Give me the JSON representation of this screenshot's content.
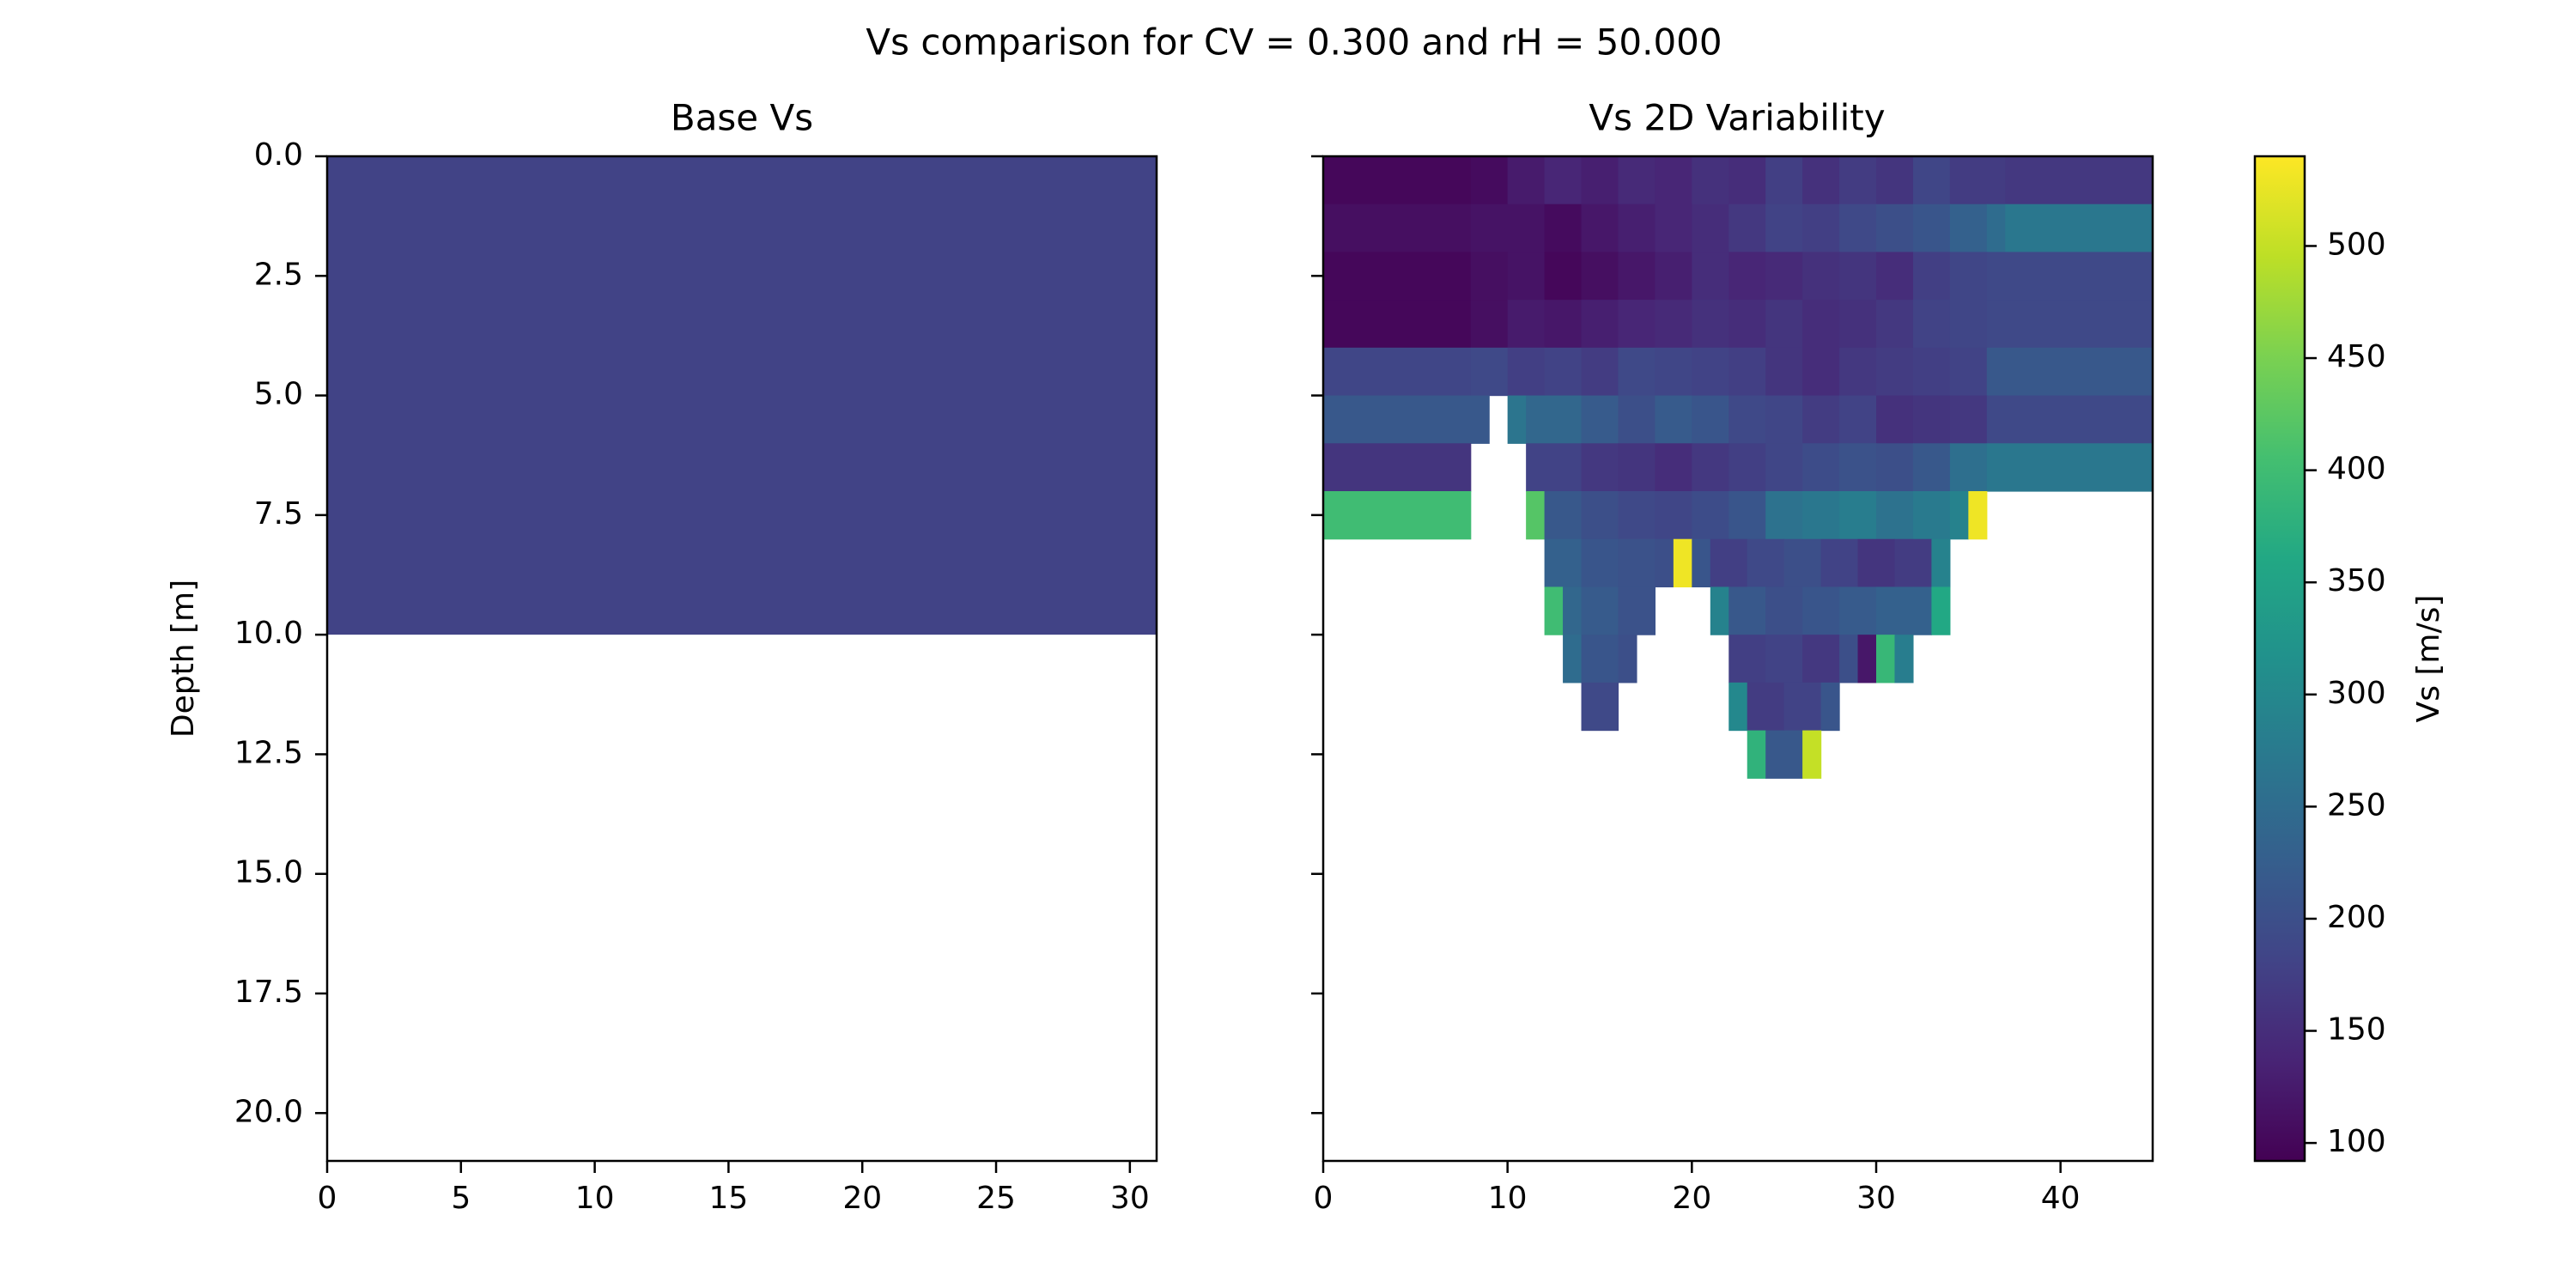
{
  "title": "Vs comparison for CV = 0.300 and rH = 50.000",
  "chart_data": [
    {
      "type": "heatmap",
      "title": "Base Vs",
      "ylabel": "Depth [m]",
      "xlim": [
        0,
        31
      ],
      "ylim": [
        21,
        0
      ],
      "xticks": [
        0,
        5,
        10,
        15,
        20,
        25,
        30
      ],
      "yticks": [
        0.0,
        2.5,
        5.0,
        7.5,
        10.0,
        12.5,
        15.0,
        17.5,
        20.0
      ],
      "cells": [
        {
          "x0": 0,
          "x1": 31,
          "d0": 0,
          "d1": 10,
          "vs": 180
        }
      ]
    },
    {
      "type": "heatmap",
      "title": "Vs 2D Variability",
      "xlim": [
        0,
        45
      ],
      "ylim": [
        21,
        0
      ],
      "xticks": [
        0,
        10,
        20,
        30,
        40
      ],
      "yticks": [
        0.0,
        2.5,
        5.0,
        7.5,
        10.0,
        12.5,
        15.0,
        17.5,
        20.0
      ],
      "colorscale": "viridis",
      "row_edges": [
        0,
        1,
        2,
        3,
        4,
        5,
        6,
        7,
        8,
        9,
        10,
        11,
        12,
        13
      ],
      "rows": [
        [
          [
            0,
            8,
            100
          ],
          [
            8,
            10,
            105
          ],
          [
            10,
            12,
            125
          ],
          [
            12,
            14,
            140
          ],
          [
            14,
            16,
            130
          ],
          [
            16,
            18,
            145
          ],
          [
            18,
            20,
            140
          ],
          [
            20,
            22,
            155
          ],
          [
            22,
            24,
            150
          ],
          [
            24,
            26,
            175
          ],
          [
            26,
            28,
            155
          ],
          [
            28,
            30,
            170
          ],
          [
            30,
            32,
            160
          ],
          [
            32,
            34,
            185
          ],
          [
            34,
            37,
            170
          ],
          [
            37,
            45,
            165
          ]
        ],
        [
          [
            0,
            8,
            110
          ],
          [
            8,
            12,
            115
          ],
          [
            12,
            14,
            105
          ],
          [
            14,
            16,
            120
          ],
          [
            16,
            18,
            130
          ],
          [
            18,
            20,
            140
          ],
          [
            20,
            22,
            150
          ],
          [
            22,
            24,
            165
          ],
          [
            24,
            26,
            180
          ],
          [
            26,
            28,
            175
          ],
          [
            28,
            30,
            190
          ],
          [
            30,
            32,
            200
          ],
          [
            32,
            34,
            210
          ],
          [
            34,
            36,
            230
          ],
          [
            36,
            37,
            250
          ],
          [
            37,
            45,
            270
          ]
        ],
        [
          [
            0,
            8,
            100
          ],
          [
            8,
            10,
            110
          ],
          [
            10,
            12,
            115
          ],
          [
            12,
            14,
            100
          ],
          [
            14,
            16,
            110
          ],
          [
            16,
            18,
            120
          ],
          [
            18,
            20,
            130
          ],
          [
            20,
            22,
            150
          ],
          [
            22,
            24,
            140
          ],
          [
            24,
            26,
            145
          ],
          [
            26,
            28,
            155
          ],
          [
            28,
            30,
            160
          ],
          [
            30,
            32,
            150
          ],
          [
            32,
            34,
            175
          ],
          [
            34,
            36,
            185
          ],
          [
            36,
            45,
            190
          ]
        ],
        [
          [
            0,
            8,
            100
          ],
          [
            8,
            10,
            110
          ],
          [
            10,
            12,
            125
          ],
          [
            12,
            14,
            120
          ],
          [
            14,
            16,
            130
          ],
          [
            16,
            18,
            140
          ],
          [
            18,
            20,
            145
          ],
          [
            20,
            22,
            155
          ],
          [
            22,
            24,
            150
          ],
          [
            24,
            26,
            160
          ],
          [
            26,
            28,
            150
          ],
          [
            28,
            30,
            155
          ],
          [
            30,
            32,
            165
          ],
          [
            32,
            34,
            180
          ],
          [
            34,
            36,
            185
          ],
          [
            36,
            45,
            190
          ]
        ],
        [
          [
            0,
            8,
            185
          ],
          [
            8,
            10,
            190
          ],
          [
            10,
            12,
            175
          ],
          [
            12,
            14,
            180
          ],
          [
            14,
            16,
            170
          ],
          [
            16,
            18,
            190
          ],
          [
            18,
            20,
            185
          ],
          [
            20,
            22,
            180
          ],
          [
            22,
            24,
            175
          ],
          [
            24,
            26,
            160
          ],
          [
            26,
            28,
            150
          ],
          [
            28,
            30,
            165
          ],
          [
            30,
            32,
            170
          ],
          [
            32,
            34,
            175
          ],
          [
            34,
            36,
            180
          ],
          [
            36,
            45,
            215
          ]
        ],
        [
          [
            0,
            9,
            215
          ],
          [
            10,
            11,
            265
          ],
          [
            11,
            14,
            240
          ],
          [
            14,
            16,
            220
          ],
          [
            16,
            18,
            200
          ],
          [
            18,
            20,
            220
          ],
          [
            20,
            22,
            210
          ],
          [
            22,
            24,
            190
          ],
          [
            24,
            26,
            185
          ],
          [
            26,
            28,
            170
          ],
          [
            28,
            30,
            180
          ],
          [
            30,
            32,
            155
          ],
          [
            32,
            34,
            160
          ],
          [
            34,
            36,
            165
          ],
          [
            36,
            45,
            190
          ]
        ],
        [
          [
            0,
            8,
            160
          ],
          [
            11,
            14,
            180
          ],
          [
            14,
            16,
            165
          ],
          [
            16,
            18,
            160
          ],
          [
            18,
            20,
            150
          ],
          [
            20,
            22,
            165
          ],
          [
            22,
            24,
            175
          ],
          [
            24,
            26,
            185
          ],
          [
            26,
            28,
            195
          ],
          [
            28,
            30,
            205
          ],
          [
            30,
            32,
            200
          ],
          [
            32,
            34,
            215
          ],
          [
            34,
            36,
            255
          ],
          [
            36,
            45,
            270
          ]
        ],
        [
          [
            0,
            8,
            400
          ],
          [
            11,
            12,
            420
          ],
          [
            12,
            14,
            215
          ],
          [
            14,
            16,
            200
          ],
          [
            16,
            18,
            190
          ],
          [
            18,
            20,
            185
          ],
          [
            20,
            22,
            195
          ],
          [
            22,
            24,
            210
          ],
          [
            24,
            26,
            260
          ],
          [
            26,
            28,
            270
          ],
          [
            28,
            30,
            280
          ],
          [
            30,
            32,
            260
          ],
          [
            32,
            34,
            275
          ],
          [
            34,
            35,
            290
          ],
          [
            35,
            36,
            530
          ]
        ],
        [
          [
            12,
            14,
            230
          ],
          [
            14,
            16,
            210
          ],
          [
            16,
            18,
            205
          ],
          [
            18,
            19,
            200
          ],
          [
            19,
            20,
            530
          ],
          [
            20,
            21,
            210
          ],
          [
            21,
            23,
            175
          ],
          [
            23,
            25,
            190
          ],
          [
            25,
            27,
            200
          ],
          [
            27,
            29,
            180
          ],
          [
            29,
            31,
            160
          ],
          [
            31,
            33,
            170
          ],
          [
            33,
            34,
            290
          ]
        ],
        [
          [
            12,
            13,
            400
          ],
          [
            13,
            14,
            240
          ],
          [
            14,
            16,
            220
          ],
          [
            16,
            18,
            205
          ],
          [
            21,
            22,
            290
          ],
          [
            22,
            24,
            215
          ],
          [
            24,
            26,
            200
          ],
          [
            26,
            28,
            210
          ],
          [
            28,
            30,
            220
          ],
          [
            30,
            32,
            230
          ],
          [
            32,
            33,
            230
          ],
          [
            33,
            34,
            360
          ]
        ],
        [
          [
            13,
            14,
            250
          ],
          [
            14,
            16,
            210
          ],
          [
            16,
            17,
            200
          ],
          [
            22,
            24,
            175
          ],
          [
            24,
            26,
            180
          ],
          [
            26,
            28,
            165
          ],
          [
            28,
            29,
            200
          ],
          [
            29,
            30,
            120
          ],
          [
            30,
            31,
            390
          ],
          [
            31,
            32,
            280
          ]
        ],
        [
          [
            14,
            16,
            190
          ],
          [
            22,
            23,
            300
          ],
          [
            23,
            25,
            170
          ],
          [
            25,
            27,
            180
          ],
          [
            27,
            28,
            210
          ]
        ],
        [
          [
            23,
            24,
            380
          ],
          [
            24,
            26,
            215
          ],
          [
            26,
            27,
            500
          ]
        ]
      ]
    }
  ],
  "colorbar": {
    "label": "Vs [m/s]",
    "range": [
      92,
      540
    ],
    "ticks": [
      100,
      150,
      200,
      250,
      300,
      350,
      400,
      450,
      500
    ]
  }
}
